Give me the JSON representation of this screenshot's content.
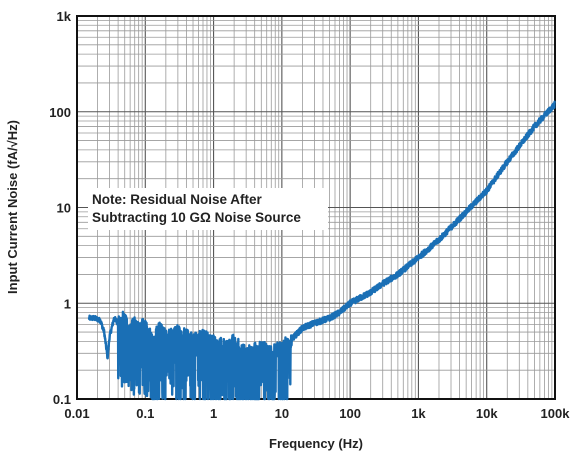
{
  "chart_data": {
    "type": "line",
    "title": "",
    "xlabel": "Frequency (Hz)",
    "ylabel": "Input Current Noise (fA/√Hz)",
    "xscale": "log",
    "yscale": "log",
    "xlim": [
      0.01,
      100000
    ],
    "ylim": [
      0.1,
      1000
    ],
    "x_tick_labels": [
      "0.01",
      "0.1",
      "1",
      "10",
      "100",
      "1k",
      "10k",
      "100k"
    ],
    "y_tick_labels": [
      "0.1",
      "1",
      "10",
      "100",
      "1k"
    ],
    "grid": "on, major and minor (log)",
    "annotation": [
      "Note: Residual Noise After",
      "Subtracting 10 GΩ Noise Source"
    ],
    "series": [
      {
        "color": "#1a6fb5",
        "x": [
          0.015,
          0.018,
          0.02,
          0.022,
          0.025,
          0.028,
          0.03,
          0.035,
          0.04,
          0.05,
          0.06,
          0.07,
          0.08,
          0.1,
          0.13,
          0.16,
          0.2,
          0.3,
          0.5,
          0.7,
          1,
          1.5,
          2,
          3,
          5,
          7,
          10,
          13,
          20,
          30,
          50,
          70,
          100,
          200,
          300,
          500,
          1000,
          2000,
          5000,
          10000,
          20000,
          50000,
          100000
        ],
        "y": [
          0.7,
          0.7,
          0.68,
          0.66,
          0.5,
          0.27,
          0.45,
          0.7,
          0.62,
          0.72,
          0.5,
          0.65,
          0.55,
          0.6,
          0.4,
          0.55,
          0.45,
          0.5,
          0.42,
          0.45,
          0.4,
          0.35,
          0.4,
          0.3,
          0.35,
          0.3,
          0.35,
          0.4,
          0.55,
          0.62,
          0.7,
          0.8,
          1.0,
          1.3,
          1.6,
          2.0,
          3.0,
          4.6,
          9.0,
          15.0,
          30.0,
          70.0,
          120.0
        ]
      }
    ]
  }
}
